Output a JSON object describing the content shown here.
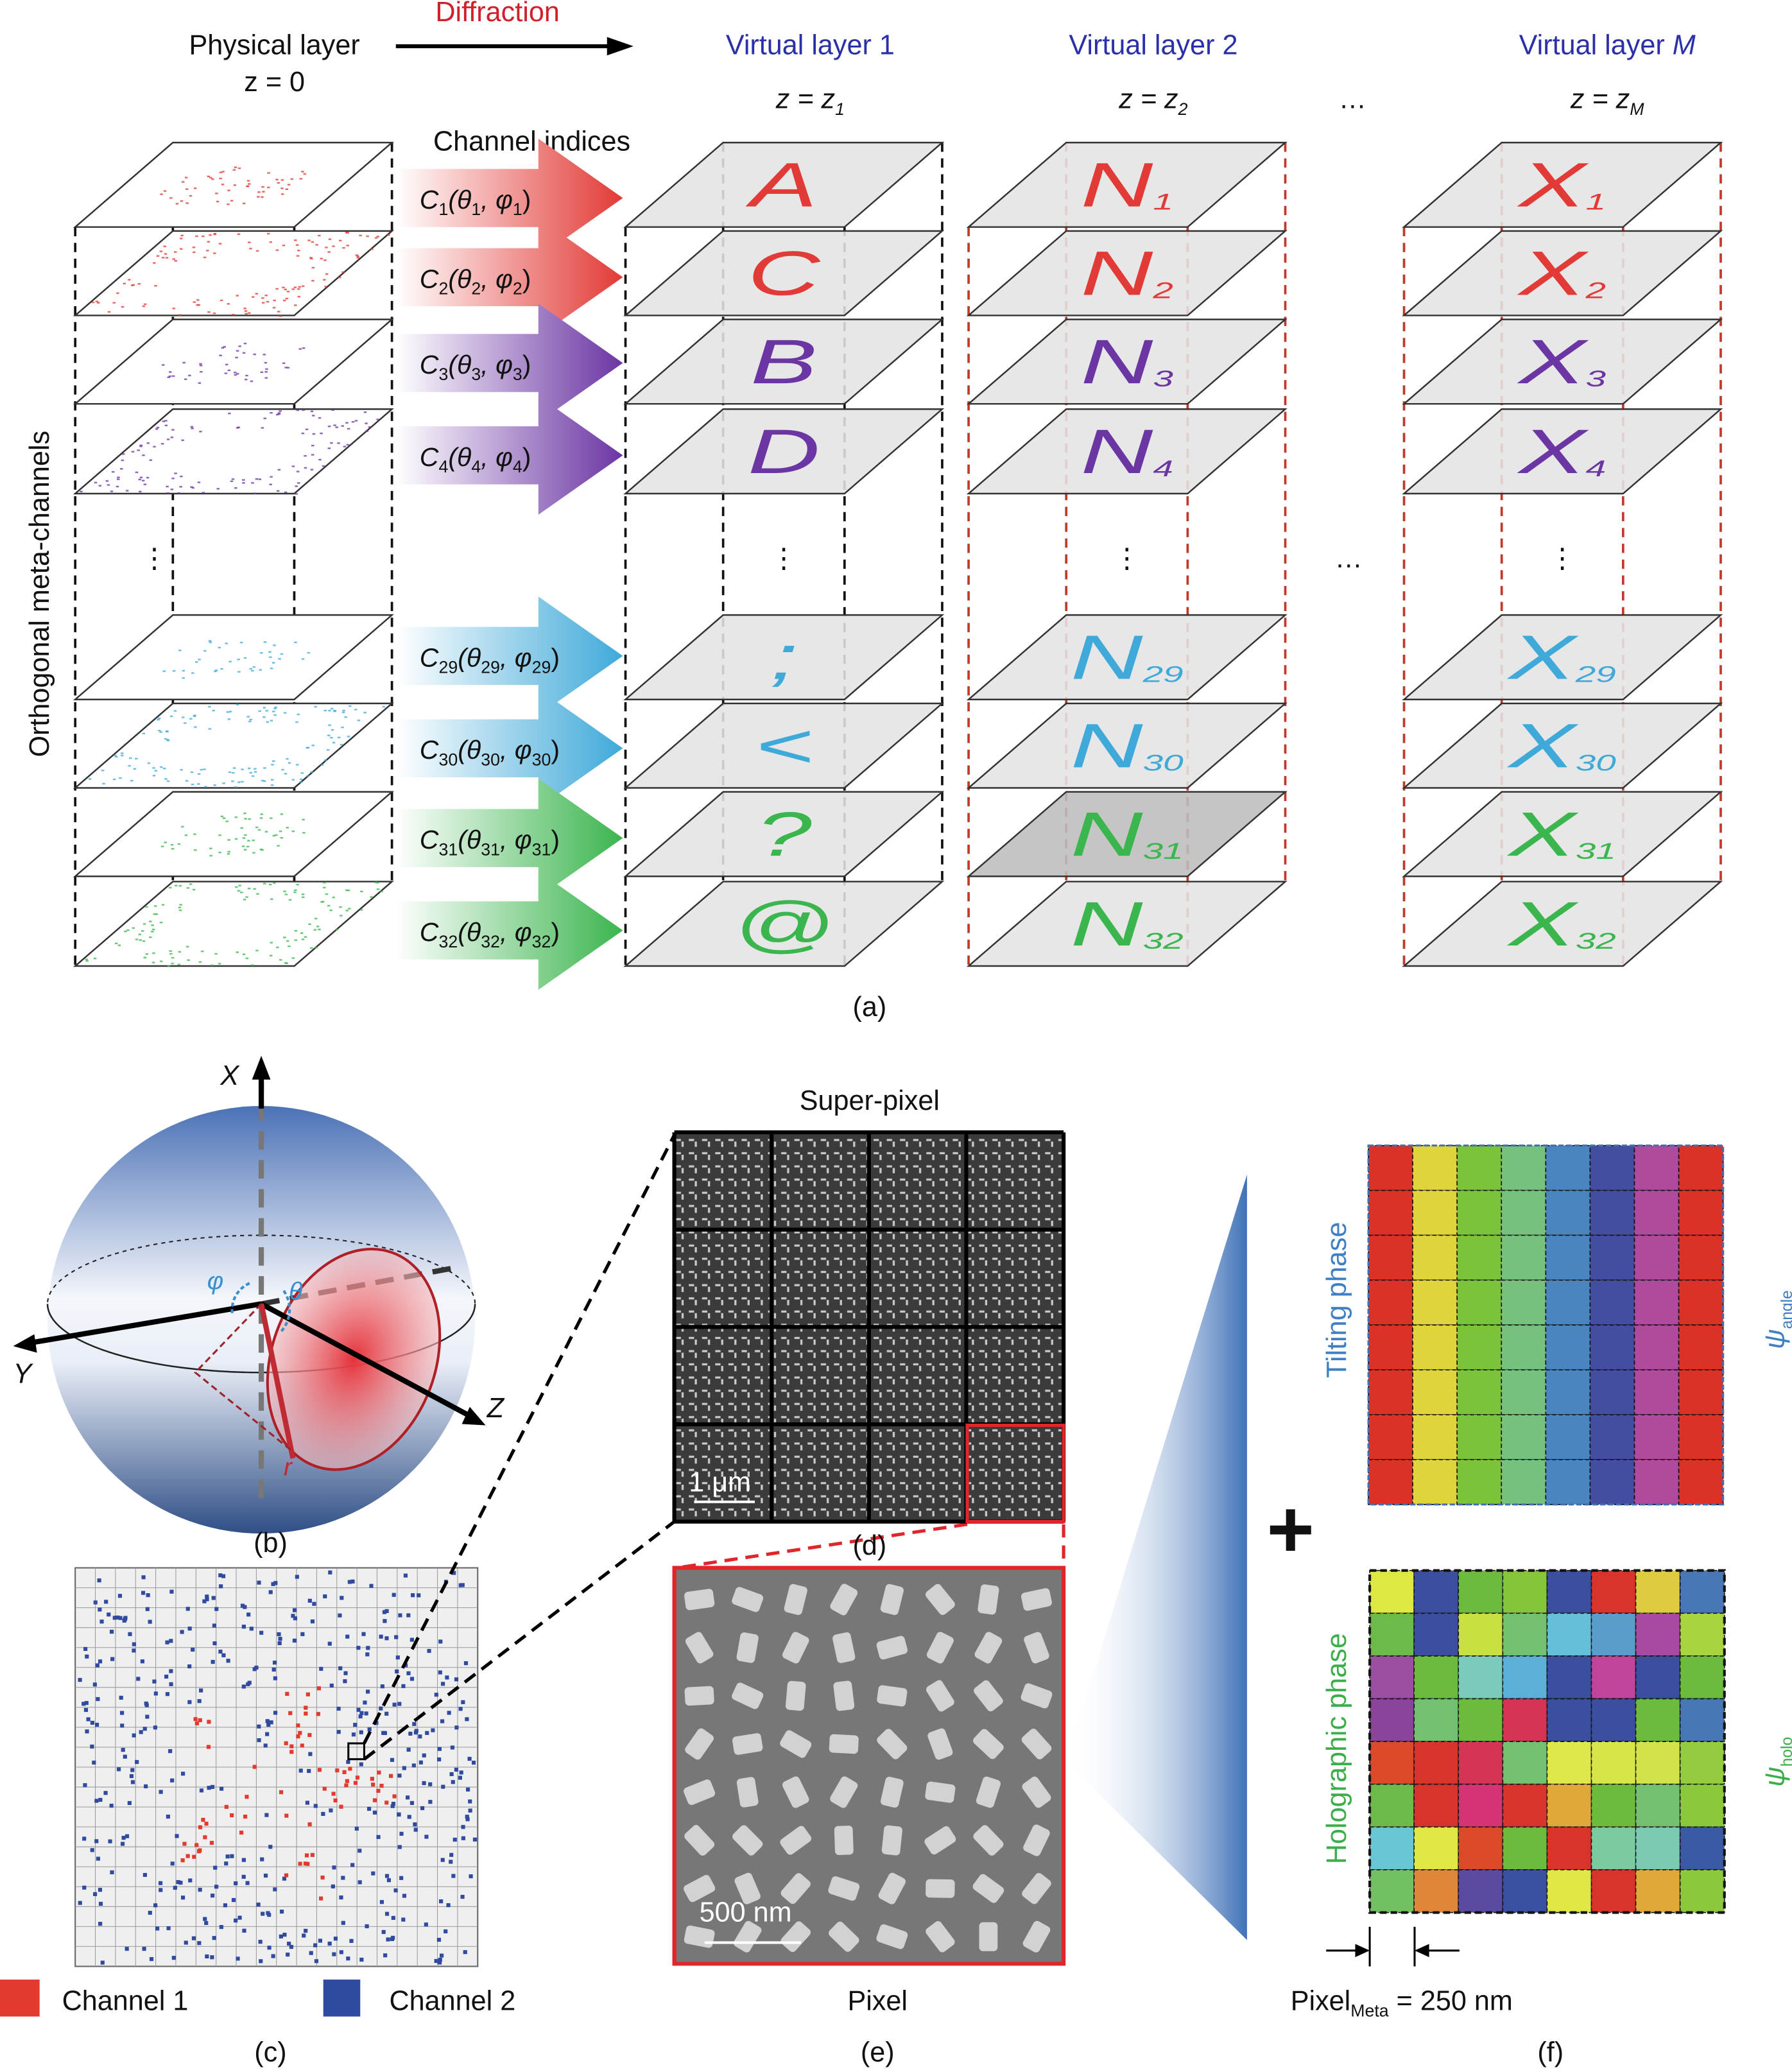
{
  "header": {
    "physical_layer": "Physical layer",
    "z0": "z = 0",
    "diffraction": "Diffraction",
    "channel_indices": "Channel indices",
    "ellipsis": "…",
    "virtual_layers": [
      {
        "title": "Virtual layer ",
        "idx": "1",
        "z": "z = z",
        "sub": "1"
      },
      {
        "title": "Virtual layer ",
        "idx": "2",
        "z": "z = z",
        "sub": "2"
      },
      {
        "title": "Virtual layer ",
        "idx": "M",
        "z": "z = z",
        "sub": "M"
      }
    ],
    "side_label": "Orthogonal meta-channels",
    "vdots": "⋮"
  },
  "channels": [
    {
      "n": "1",
      "color": "#e23a36"
    },
    {
      "n": "2",
      "color": "#e23a36"
    },
    {
      "n": "3",
      "color": "#6b35a3"
    },
    {
      "n": "4",
      "color": "#6b35a3"
    },
    {
      "n": "29",
      "color": "#3fa9d9"
    },
    {
      "n": "30",
      "color": "#3fa9d9"
    },
    {
      "n": "31",
      "color": "#3bb54e"
    },
    {
      "n": "32",
      "color": "#3bb54e"
    }
  ],
  "layer1_letters": [
    "A",
    "C",
    "B",
    "D",
    ";",
    "<",
    "?",
    "@"
  ],
  "layer2_letter": "N",
  "layerM_letter": "X",
  "panel_labels": {
    "a": "(a)",
    "b": "(b)",
    "c": "(c)",
    "d": "(d)",
    "e": "(e)",
    "f": "(f)"
  },
  "sphere": {
    "x": "X",
    "y": "Y",
    "z": "Z",
    "phi": "φ",
    "theta": "θ",
    "r": "r"
  },
  "legend": {
    "ch1": "Channel 1",
    "ch1_color": "#e23a2e",
    "ch2": "Channel 2",
    "ch2_color": "#2f4a9e"
  },
  "superpixel": {
    "title": "Super-pixel",
    "scale": "1 μm"
  },
  "pixel": {
    "scale": "500 nm",
    "title": "Pixel"
  },
  "phase": {
    "tilting": "Tilting phase",
    "holographic": "Holographic phase",
    "psi": "ψ",
    "angle_sub": "angle",
    "holo_sub": "holo",
    "plus": "+",
    "pixel_meta": "Pixel",
    "meta_sub": "Meta",
    "pixel_value": " = 250 nm",
    "tilting_colors": [
      "#dc3127",
      "#dfd43c",
      "#7bc43a",
      "#76c17e",
      "#4a85bf",
      "#434ea0",
      "#b04a9c",
      "#dc3127"
    ],
    "holo_colors": [
      [
        "#dde843",
        "#3a4f9f",
        "#6cbb3c",
        "#86c43a",
        "#3a4f9f",
        "#d9342b",
        "#ddcc3f",
        "#4777b5"
      ],
      [
        "#6cbb4a",
        "#3a4f9f",
        "#c8e040",
        "#72c070",
        "#66bfd9",
        "#5a9dcb",
        "#a84a9f",
        "#a8d43f"
      ],
      [
        "#9a4fa0",
        "#6cbb3c",
        "#7ccabc",
        "#5ab0d8",
        "#3a4f9f",
        "#c0449a",
        "#3a4f9f",
        "#6cbb3c"
      ],
      [
        "#8a449a",
        "#72c070",
        "#6cbb3c",
        "#d63355",
        "#3a4f9f",
        "#3a4f9f",
        "#6cbb3c",
        "#4777b5"
      ],
      [
        "#dd4a2a",
        "#d9342b",
        "#d63355",
        "#72c070",
        "#dfe84a",
        "#d7e44a",
        "#d1e24a",
        "#94cc3f"
      ],
      [
        "#6cbb4a",
        "#d9342b",
        "#d63376",
        "#d9342b",
        "#e0a73a",
        "#6cbb3c",
        "#72c070",
        "#8cc83c"
      ],
      [
        "#68c6d6",
        "#e0e846",
        "#dd4a2a",
        "#6cbb3c",
        "#d9342b",
        "#7ccaa0",
        "#7ccab4",
        "#3a5aa5"
      ],
      [
        "#72c062",
        "#e0863a",
        "#5b4aa0",
        "#3a50a0",
        "#e0e846",
        "#d9342b",
        "#e0a73a",
        "#8cc83c"
      ]
    ]
  }
}
